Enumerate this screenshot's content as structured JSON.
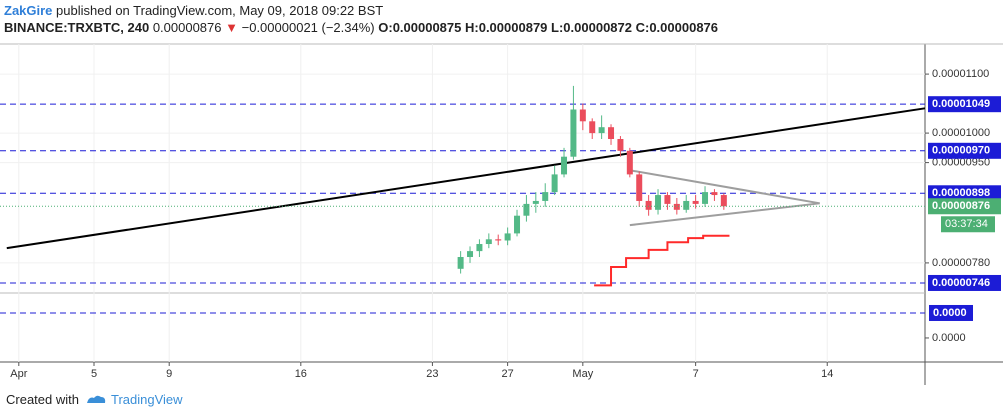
{
  "header": {
    "author": "ZakGire",
    "published": "published on TradingView.com, May 09, 2018 09:22 BST",
    "symbol": "BINANCE:TRXBTC, 240",
    "last": "0.00000876",
    "change": "−0.00000021 (−2.34%)",
    "ohlc": [
      "O:0.00000875",
      "H:0.00000879",
      "L:0.00000872",
      "C:0.00000876"
    ]
  },
  "chart_data": {
    "type": "candlestick",
    "x": [
      24.5,
      25,
      25.5,
      26,
      26.5,
      27,
      27.5,
      28,
      28.5,
      29,
      29.5,
      30,
      30.5,
      31,
      31.5,
      32,
      32.5,
      33,
      33.5,
      34,
      34.5,
      35,
      35.5,
      36,
      36.5,
      37,
      37.5,
      38,
      38.5
    ],
    "open": [
      7.7e-06,
      7.9e-06,
      8e-06,
      8.12e-06,
      8.2e-06,
      8.18e-06,
      8.3e-06,
      8.6e-06,
      8.8e-06,
      8.85e-06,
      9e-06,
      9.3e-06,
      9.6e-06,
      1.04e-05,
      1.02e-05,
      1e-05,
      1.01e-05,
      9.9e-06,
      9.7e-06,
      9.3e-06,
      8.85e-06,
      8.7e-06,
      8.95e-06,
      8.8e-06,
      8.7e-06,
      8.85e-06,
      8.8e-06,
      9e-06,
      8.95e-06
    ],
    "high": [
      8e-06,
      8.08e-06,
      8.2e-06,
      8.3e-06,
      8.28e-06,
      8.4e-06,
      8.7e-06,
      8.95e-06,
      9e-06,
      9.15e-06,
      9.45e-06,
      9.75e-06,
      1.08e-05,
      1.05e-05,
      1.025e-05,
      1.03e-05,
      1.015e-05,
      9.95e-06,
      9.75e-06,
      9.35e-06,
      8.95e-06,
      9.05e-06,
      9e-06,
      8.9e-06,
      8.95e-06,
      8.95e-06,
      9.1e-06,
      9.05e-06,
      8.98e-06
    ],
    "low": [
      7.62e-06,
      7.8e-06,
      7.9e-06,
      8.05e-06,
      8.1e-06,
      8.1e-06,
      8.25e-06,
      8.5e-06,
      8.65e-06,
      8.75e-06,
      8.95e-06,
      9.25e-06,
      9.55e-06,
      1.005e-05,
      9.9e-06,
      9.9e-06,
      9.8e-06,
      9.6e-06,
      9.25e-06,
      8.75e-06,
      8.6e-06,
      8.62e-06,
      8.7e-06,
      8.62e-06,
      8.65e-06,
      8.72e-06,
      8.75e-06,
      8.85e-06,
      8.7e-06
    ],
    "close": [
      7.9e-06,
      8e-06,
      8.12e-06,
      8.2e-06,
      8.18e-06,
      8.3e-06,
      8.6e-06,
      8.8e-06,
      8.85e-06,
      9e-06,
      9.3e-06,
      9.6e-06,
      1.04e-05,
      1.02e-05,
      1e-05,
      1.01e-05,
      9.9e-06,
      9.7e-06,
      9.3e-06,
      8.85e-06,
      8.7e-06,
      8.95e-06,
      8.8e-06,
      8.7e-06,
      8.85e-06,
      8.8e-06,
      9e-06,
      8.95e-06,
      8.76e-06
    ],
    "up_color": "#53b987",
    "down_color": "#eb4d5c",
    "xlim": [
      0,
      49.2
    ],
    "xticks": [
      {
        "value": 1,
        "label": "Apr"
      },
      5,
      9,
      16,
      23,
      27,
      {
        "value": 31,
        "label": "May"
      },
      {
        "value": 37,
        "label": "7"
      },
      {
        "value": 44,
        "label": "14"
      }
    ],
    "ylim": [
      7.29e-06,
      1.151e-05
    ],
    "yticks": [
      {
        "value": 1.1e-05,
        "label": "0.00001100"
      },
      {
        "value": 1e-05,
        "label": "0.00001000"
      },
      {
        "value": 9.5e-06,
        "label": "0.00000950"
      },
      {
        "value": 7.8e-06,
        "label": "0.00000780"
      }
    ],
    "levels": [
      {
        "value": 1.049e-05,
        "label": "0.00001049"
      },
      {
        "value": 9.7e-06,
        "label": "0.00000970"
      },
      {
        "value": 8.98e-06,
        "label": "0.00000898"
      },
      {
        "value": 7.46e-06,
        "label": "0.00000746"
      }
    ],
    "level_color": "#1c1cd6",
    "last_price": {
      "value": 8.76e-06,
      "label": "0.00000876",
      "countdown": "03:37:34",
      "color": "#4caf73"
    },
    "lines": [
      {
        "color": "#000000",
        "x": [
          0.36,
          49.2
        ],
        "values": [
          8.05e-06,
          1.042e-05
        ]
      },
      {
        "color": "#9e9e9e",
        "x": [
          33.5,
          43.6
        ],
        "values": [
          9.37e-06,
          8.81e-06
        ]
      },
      {
        "color": "#9e9e9e",
        "x": [
          33.5,
          43.6
        ],
        "values": [
          8.44e-06,
          8.81e-06
        ]
      },
      {
        "color": "#ff2a2a",
        "x": [
          31.6,
          32.5,
          32.5,
          33.3,
          33.3,
          34.5,
          34.5,
          35.5,
          35.5,
          36.6,
          36.6,
          37.4,
          37.4,
          38.8
        ],
        "values": [
          7.42e-06,
          7.42e-06,
          7.73e-06,
          7.73e-06,
          7.88e-06,
          7.88e-06,
          8.02e-06,
          8.02e-06,
          8.15e-06,
          8.15e-06,
          8.22e-06,
          8.22e-06,
          8.26e-06,
          8.26e-06
        ]
      }
    ],
    "macd_ylim": [
      -3.85e-05,
      7.2e-05
    ],
    "macd_yticks": [
      {
        "value": 0,
        "label": "0.0000"
      }
    ],
    "macd_level": {
      "value": 4e-05,
      "label": "0.0000"
    }
  },
  "footer": {
    "text": "Created with",
    "brand": "TradingView"
  }
}
